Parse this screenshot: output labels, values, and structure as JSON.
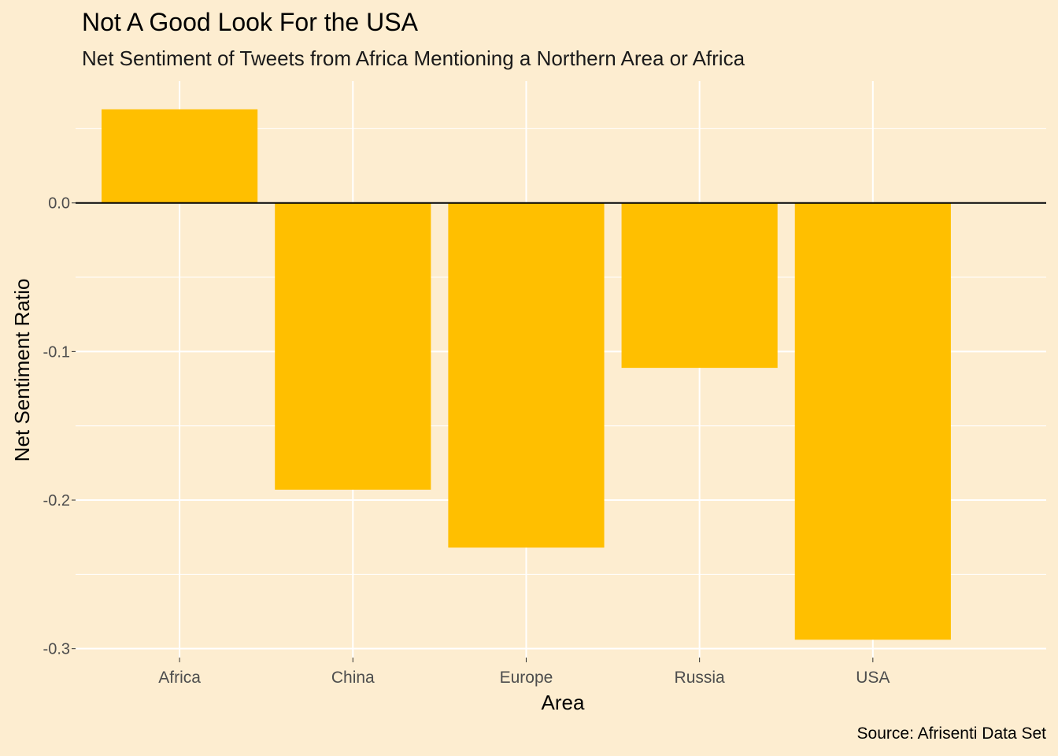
{
  "chart_data": {
    "type": "bar",
    "title": "Not A Good Look For the USA",
    "subtitle": "Net Sentiment of Tweets from Africa Mentioning a Northern Area or Africa",
    "caption": "Source: Afrisenti Data Set",
    "xlabel": "Area",
    "ylabel": "Net Sentiment Ratio",
    "categories": [
      "Africa",
      "China",
      "Europe",
      "Russia",
      "USA"
    ],
    "values": [
      0.063,
      -0.193,
      -0.232,
      -0.111,
      -0.294
    ],
    "ylim": [
      -0.306,
      0.082
    ],
    "yticks": [
      0.0,
      -0.1,
      -0.2,
      -0.3
    ],
    "ytick_labels": [
      "0.0",
      "-0.1",
      "-0.2",
      "-0.3"
    ],
    "grid": true,
    "legend": "none",
    "colors": {
      "bar": "#FFBF00",
      "background": "#FDEDD0",
      "grid": "#FFFFFF",
      "zero_line": "#000000",
      "tick_label": "#4D4D4D"
    }
  }
}
